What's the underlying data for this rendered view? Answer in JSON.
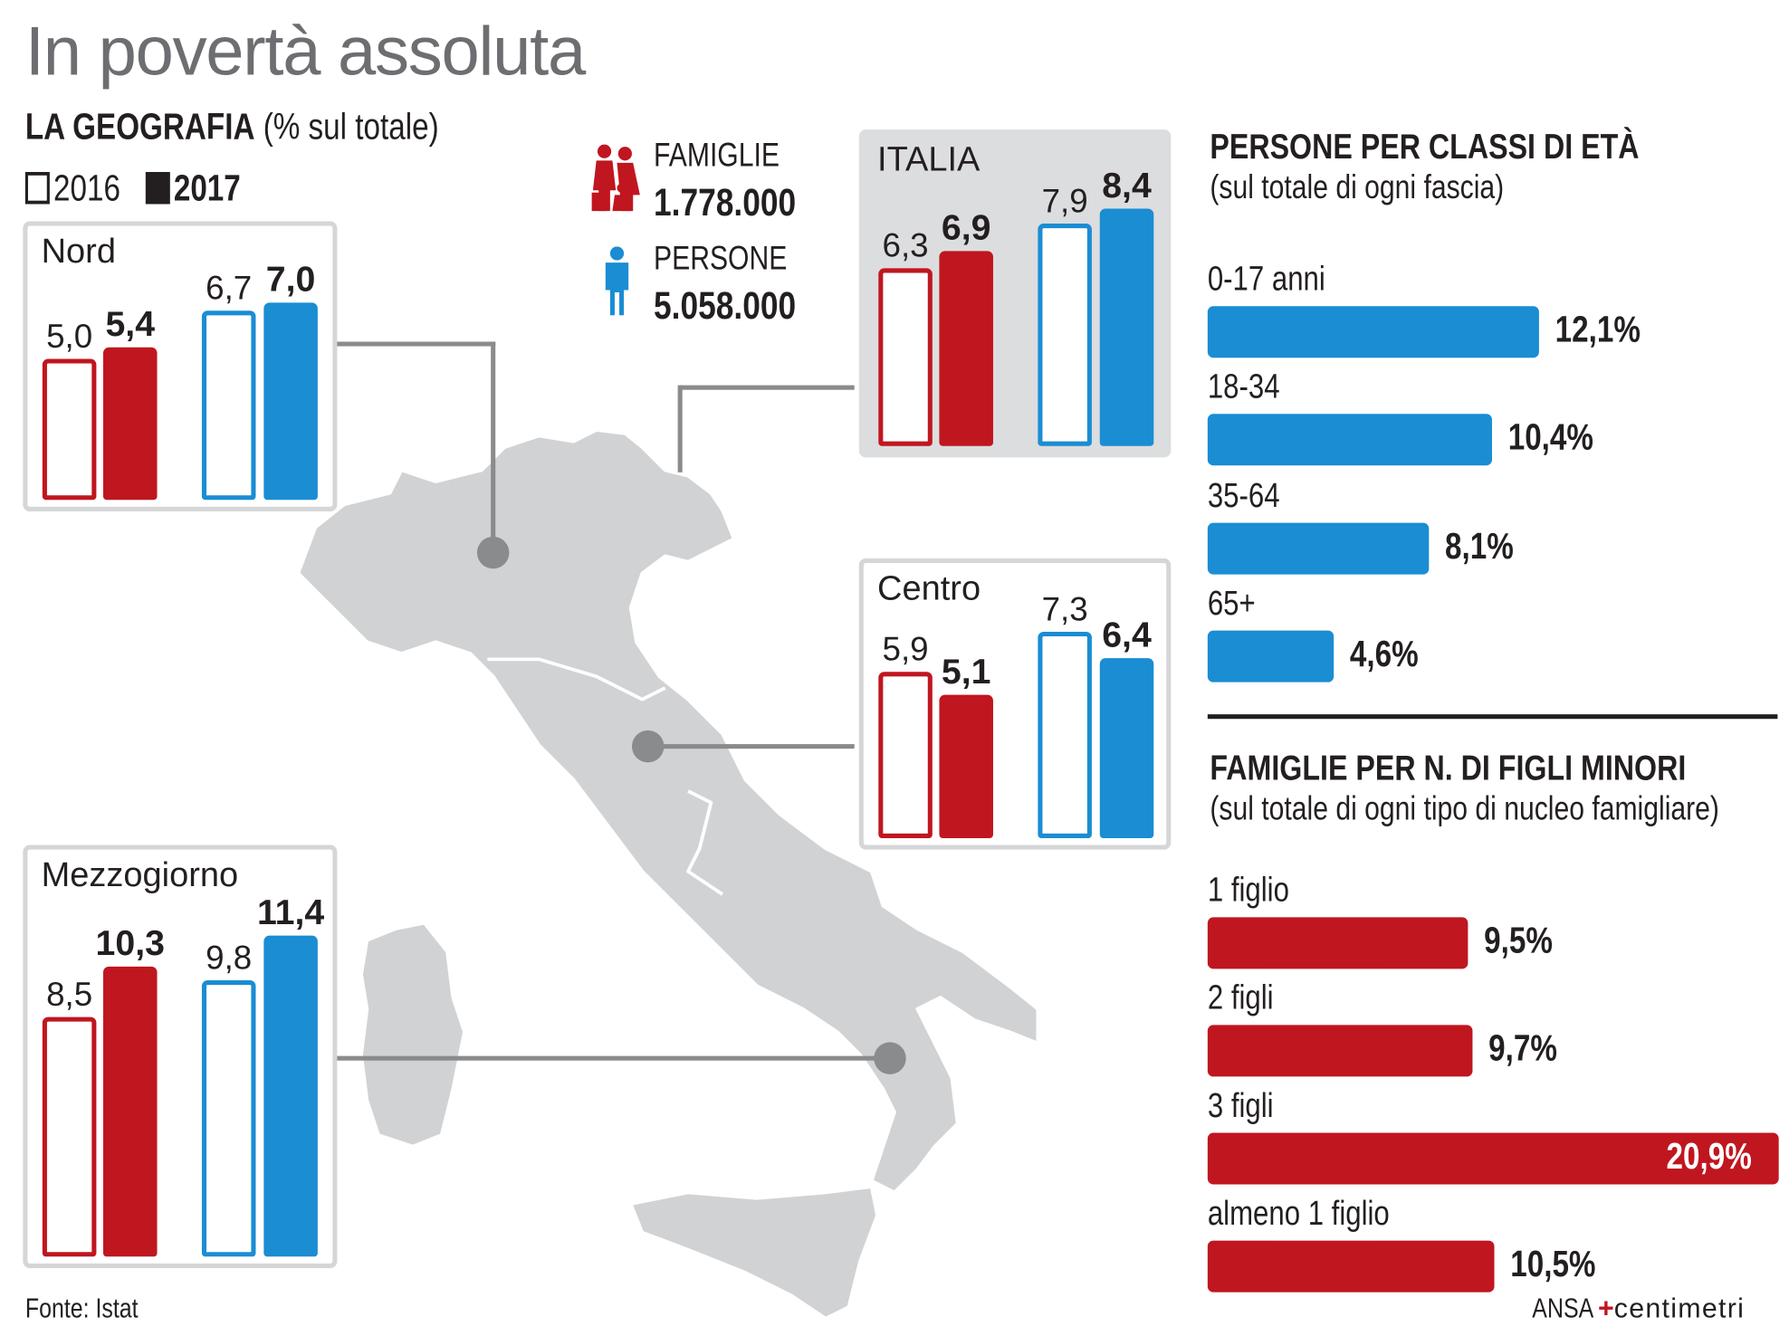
{
  "title": "In povertà assoluta",
  "geography": {
    "heading": "LA GEOGRAFIA",
    "subheading": "(% sul totale)"
  },
  "legend": {
    "y2016": "2016",
    "y2017": "2017"
  },
  "totals": {
    "famiglie_label": "FAMIGLIE",
    "famiglie_value": "1.778.000",
    "persone_label": "PERSONE",
    "persone_value": "5.058.000"
  },
  "colors": {
    "famiglie": "#c0161f",
    "persone": "#1a8dd3",
    "map": "#d1d2d4",
    "connector": "#8a8b8d",
    "title": "#6d6e71"
  },
  "source": "Fonte: Istat",
  "credit": {
    "ansa": "ANSA",
    "brand": "centimetri"
  },
  "chart_data": [
    {
      "type": "bar",
      "title": "LA GEOGRAFIA (% sul totale)",
      "legend": [
        "2016",
        "2017"
      ],
      "series_groups": [
        "famiglie",
        "persone"
      ],
      "regions": [
        {
          "name": "Nord",
          "famiglie": [
            5.0,
            5.4
          ],
          "persone": [
            6.7,
            7.0
          ]
        },
        {
          "name": "ITALIA",
          "famiglie": [
            6.3,
            6.9
          ],
          "persone": [
            7.9,
            8.4
          ]
        },
        {
          "name": "Centro",
          "famiglie": [
            5.9,
            5.1
          ],
          "persone": [
            7.3,
            6.4
          ]
        },
        {
          "name": "Mezzogiorno",
          "famiglie": [
            8.5,
            10.3
          ],
          "persone": [
            9.8,
            11.4
          ]
        }
      ]
    },
    {
      "type": "bar",
      "orientation": "horizontal",
      "title": "PERSONE PER CLASSI DI ETÀ",
      "subtitle": "(sul totale di ogni fascia)",
      "categories": [
        "0-17 anni",
        "18-34",
        "35-64",
        "65+"
      ],
      "values": [
        12.1,
        10.4,
        8.1,
        4.6
      ],
      "unit": "%"
    },
    {
      "type": "bar",
      "orientation": "horizontal",
      "title": "FAMIGLIE PER N. DI FIGLI MINORI",
      "subtitle": "(sul totale di ogni tipo di nucleo famigliare)",
      "categories": [
        "1 figlio",
        "2 figli",
        "3 figli",
        "almeno 1 figlio"
      ],
      "values": [
        9.5,
        9.7,
        20.9,
        10.5
      ],
      "unit": "%"
    }
  ]
}
